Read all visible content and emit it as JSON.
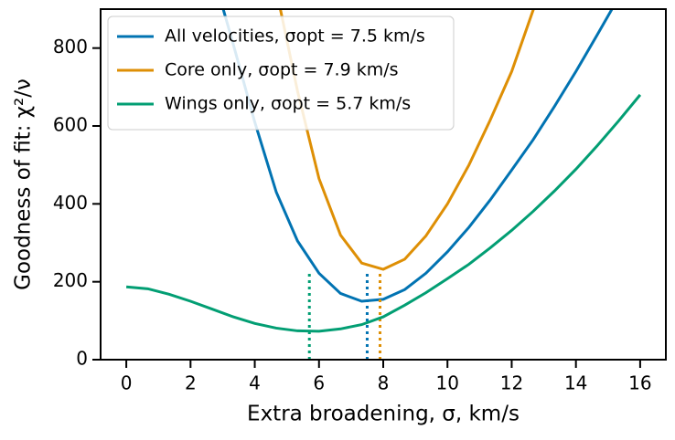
{
  "chart_data": {
    "type": "line",
    "xlabel": "Extra broadening, σ, km/s",
    "ylabel": "Goodness of fit: χ²/ν",
    "x": [
      0,
      0.67,
      1.33,
      2,
      2.67,
      3.33,
      4,
      4.67,
      5.33,
      6,
      6.67,
      7.33,
      8,
      8.67,
      9.33,
      10,
      10.67,
      11.33,
      12,
      12.67,
      13.33,
      14,
      14.67,
      15.33,
      16
    ],
    "series": [
      {
        "name": "All velocities, σopt = 7.5 km/s",
        "color": "#0173b2",
        "opt": 7.5,
        "values": [
          null,
          null,
          null,
          null,
          1000,
          810,
          610,
          430,
          305,
          222,
          170,
          150,
          155,
          180,
          222,
          277,
          340,
          410,
          487,
          565,
          650,
          740,
          835,
          930,
          null
        ]
      },
      {
        "name": "Core only, σopt = 7.9 km/s",
        "color": "#de8f05",
        "opt": 7.9,
        "values": [
          null,
          null,
          null,
          null,
          null,
          null,
          null,
          950,
          690,
          465,
          320,
          248,
          232,
          258,
          318,
          400,
          500,
          615,
          740,
          898,
          1010,
          null,
          null,
          null,
          null
        ]
      },
      {
        "name": "Wings only, σopt = 5.7 km/s",
        "color": "#029e73",
        "opt": 5.7,
        "values": [
          187,
          182,
          168,
          150,
          130,
          110,
          93,
          81,
          74,
          73,
          79,
          90,
          110,
          140,
          172,
          208,
          245,
          287,
          332,
          381,
          433,
          489,
          550,
          613,
          680
        ]
      }
    ],
    "opt_line_top": 225,
    "xlim": [
      -0.8,
      16.8
    ],
    "ylim": [
      0,
      900
    ],
    "xticks": [
      0,
      2,
      4,
      6,
      8,
      10,
      12,
      14,
      16
    ],
    "yticks": [
      0,
      200,
      400,
      600,
      800
    ],
    "legend": "upper left"
  }
}
